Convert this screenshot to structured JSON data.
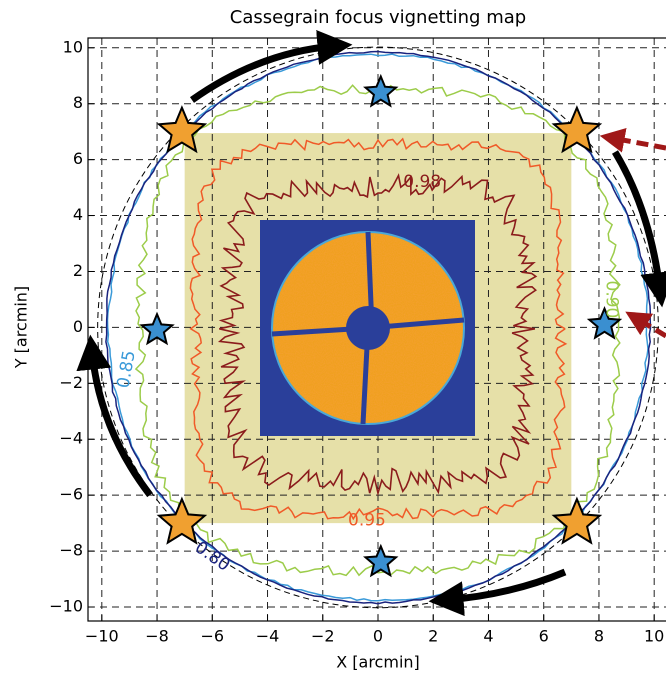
{
  "chart_data": {
    "type": "contour",
    "title": "Cassegrain focus vignetting map",
    "xlabel": "X [arcmin]",
    "ylabel": "Y [arcmin]",
    "xlim": [
      -10.5,
      10.5
    ],
    "ylim": [
      -10.5,
      10.35
    ],
    "xticks": [
      {
        "value": -10,
        "label": "−10"
      },
      {
        "value": -8,
        "label": "−8"
      },
      {
        "value": -6,
        "label": "−6"
      },
      {
        "value": -4,
        "label": "−4"
      },
      {
        "value": -2,
        "label": "−2"
      },
      0,
      2,
      4,
      6,
      8,
      10
    ],
    "yticks": [
      {
        "value": -10,
        "label": "−10"
      },
      {
        "value": -8,
        "label": "−8"
      },
      {
        "value": -6,
        "label": "−6"
      },
      {
        "value": -4,
        "label": "−4"
      },
      {
        "value": -2,
        "label": "−2"
      },
      0,
      2,
      4,
      6,
      8,
      10
    ],
    "grid": true,
    "levels": [
      {
        "value": 0.98,
        "label": "0.98",
        "color": "#8b1c1c"
      },
      {
        "value": 0.95,
        "label": "0.95",
        "color": "#f05a28"
      },
      {
        "value": 0.9,
        "label": "0.90",
        "color": "#9ccc4a"
      },
      {
        "value": 0.85,
        "label": "0.85",
        "color": "#3a9ad9"
      },
      {
        "value": 0.8,
        "label": "0.80",
        "color": "#1a237e"
      }
    ],
    "field": {
      "x": [
        -7,
        7
      ],
      "y": [
        -7,
        6.95
      ],
      "color": "#e6e0a8"
    },
    "stars": [
      {
        "color": "#f0a030",
        "x": [
          -7.1,
          7.2,
          -7.1,
          7.2
        ],
        "y": [
          7.0,
          7.0,
          -7.0,
          -7.0
        ]
      },
      {
        "color": "#3a8fd0",
        "x": [
          0.1,
          0.1,
          -8.0,
          8.2
        ],
        "y": [
          8.4,
          -8.4,
          -0.1,
          0.1
        ]
      }
    ]
  }
}
